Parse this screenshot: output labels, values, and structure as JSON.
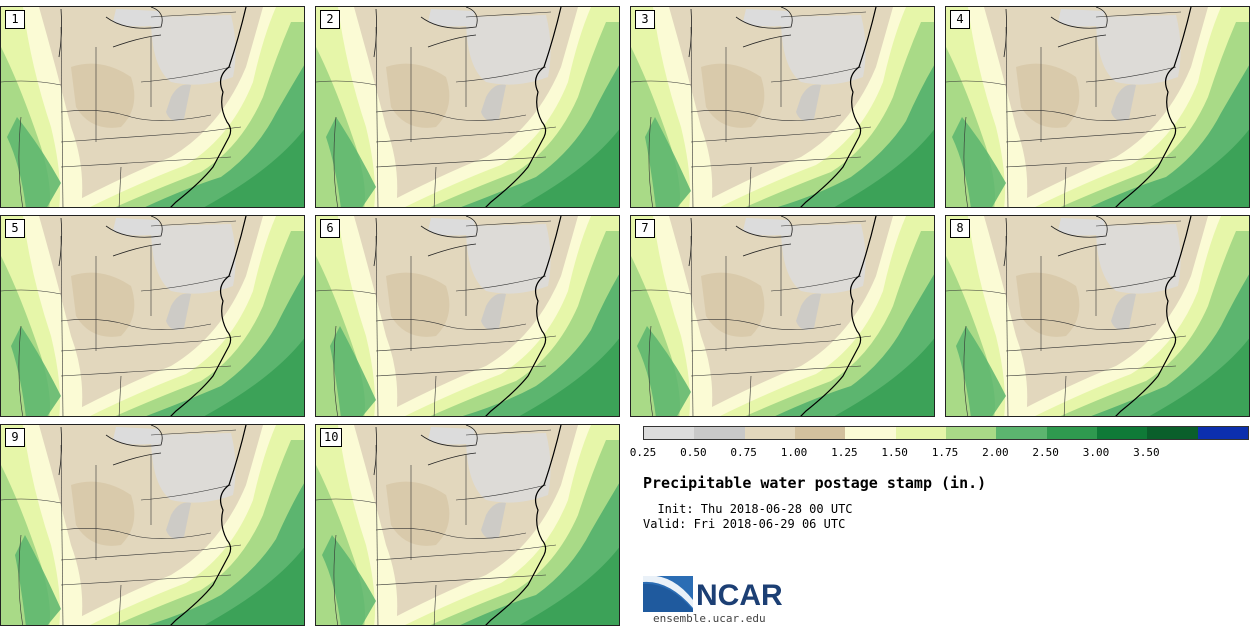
{
  "panels": [
    {
      "label": "1"
    },
    {
      "label": "2"
    },
    {
      "label": "3"
    },
    {
      "label": "4"
    },
    {
      "label": "5"
    },
    {
      "label": "6"
    },
    {
      "label": "7"
    },
    {
      "label": "8"
    },
    {
      "label": "9"
    },
    {
      "label": "10"
    }
  ],
  "colorbar": {
    "colors": [
      "#dcdcdc",
      "#c8c8c8",
      "#e2d7bd",
      "#d3c19e",
      "#fbfbd5",
      "#e6f6a9",
      "#a9da87",
      "#5cb56f",
      "#2f9a4f",
      "#0f7a37",
      "#0a5f2b",
      "#0c2fae"
    ],
    "ticks": [
      "0.25",
      "0.50",
      "0.75",
      "1.00",
      "1.25",
      "1.50",
      "1.75",
      "2.00",
      "2.50",
      "3.00",
      "3.50"
    ]
  },
  "title": "Precipitable water postage stamp (in.)",
  "init": "  Init: Thu 2018-06-28 00 UTC",
  "valid": "Valid: Fri 2018-06-29 06 UTC",
  "logo": {
    "text": "NCAR",
    "url": "ensemble.ucar.edu",
    "color": "#1c3f74",
    "swoosh_color": "#2b6db4"
  }
}
